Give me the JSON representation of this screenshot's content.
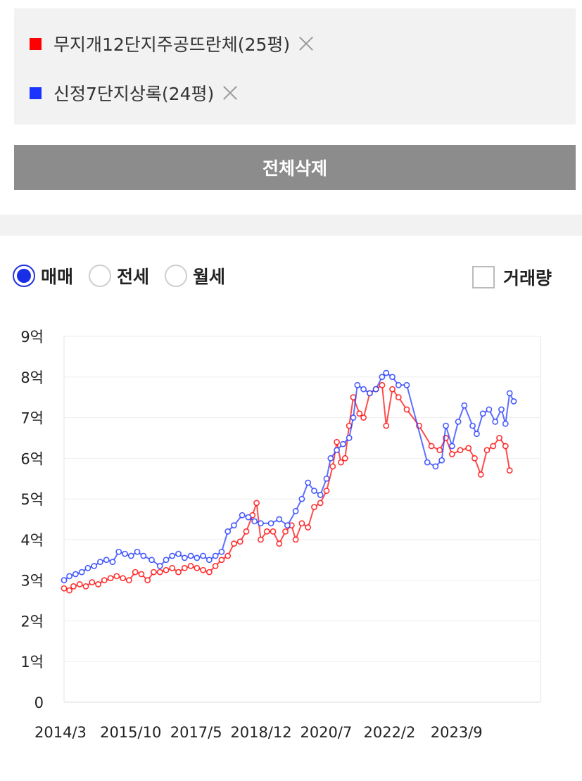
{
  "compare_list": {
    "items": [
      {
        "label": "무지개12단지주공뜨란체(25평)",
        "color": "#ff0000"
      },
      {
        "label": "신정7단지상록(24평)",
        "color": "#1a33ff"
      }
    ],
    "delete_all_label": "전체삭제"
  },
  "trade_type": {
    "options": [
      "매매",
      "전세",
      "월세"
    ],
    "selected": "매매"
  },
  "volume_toggle": {
    "label": "거래량",
    "checked": false
  },
  "chart_data": {
    "type": "line",
    "title": "",
    "xlabel": "",
    "ylabel": "",
    "ylim": [
      0,
      9
    ],
    "xlim": [
      2014.17,
      2025.75
    ],
    "y_ticks": [
      0,
      1,
      2,
      3,
      4,
      5,
      6,
      7,
      8,
      9
    ],
    "y_tick_labels": [
      "0",
      "1억",
      "2억",
      "3억",
      "4억",
      "5억",
      "6억",
      "7억",
      "8억",
      "9억"
    ],
    "x_ticks": [
      2014.17,
      2015.79,
      2017.38,
      2018.96,
      2020.54,
      2022.08,
      2023.71
    ],
    "x_tick_labels": [
      "2014/3",
      "2015/10",
      "2017/5",
      "2018/12",
      "2020/7",
      "2022/2",
      "2023/9"
    ],
    "grid": true,
    "series": [
      {
        "name": "무지개12단지주공뜨란체(25평)",
        "color": "#ff0000",
        "points": [
          [
            2014.17,
            2.8
          ],
          [
            2014.3,
            2.75
          ],
          [
            2014.4,
            2.85
          ],
          [
            2014.55,
            2.9
          ],
          [
            2014.7,
            2.85
          ],
          [
            2014.85,
            2.95
          ],
          [
            2015.0,
            2.9
          ],
          [
            2015.15,
            3.0
          ],
          [
            2015.3,
            3.05
          ],
          [
            2015.45,
            3.1
          ],
          [
            2015.6,
            3.05
          ],
          [
            2015.75,
            3.0
          ],
          [
            2015.9,
            3.2
          ],
          [
            2016.05,
            3.15
          ],
          [
            2016.2,
            3.0
          ],
          [
            2016.35,
            3.2
          ],
          [
            2016.5,
            3.2
          ],
          [
            2016.65,
            3.25
          ],
          [
            2016.8,
            3.3
          ],
          [
            2016.95,
            3.2
          ],
          [
            2017.1,
            3.3
          ],
          [
            2017.25,
            3.35
          ],
          [
            2017.4,
            3.3
          ],
          [
            2017.55,
            3.25
          ],
          [
            2017.7,
            3.2
          ],
          [
            2017.85,
            3.35
          ],
          [
            2018.0,
            3.5
          ],
          [
            2018.15,
            3.6
          ],
          [
            2018.3,
            3.9
          ],
          [
            2018.45,
            3.95
          ],
          [
            2018.6,
            4.2
          ],
          [
            2018.75,
            4.6
          ],
          [
            2018.85,
            4.9
          ],
          [
            2018.95,
            4.0
          ],
          [
            2019.1,
            4.2
          ],
          [
            2019.25,
            4.2
          ],
          [
            2019.4,
            3.9
          ],
          [
            2019.55,
            4.2
          ],
          [
            2019.7,
            4.35
          ],
          [
            2019.8,
            4.0
          ],
          [
            2019.95,
            4.4
          ],
          [
            2020.1,
            4.3
          ],
          [
            2020.25,
            4.8
          ],
          [
            2020.4,
            4.9
          ],
          [
            2020.55,
            5.2
          ],
          [
            2020.7,
            5.8
          ],
          [
            2020.8,
            6.4
          ],
          [
            2020.9,
            5.9
          ],
          [
            2021.0,
            6.0
          ],
          [
            2021.1,
            6.8
          ],
          [
            2021.2,
            7.5
          ],
          [
            2021.35,
            7.1
          ],
          [
            2021.45,
            7.0
          ],
          [
            2021.6,
            7.6
          ],
          [
            2021.75,
            7.7
          ],
          [
            2021.9,
            7.8
          ],
          [
            2022.0,
            6.8
          ],
          [
            2022.15,
            7.7
          ],
          [
            2022.3,
            7.5
          ],
          [
            2022.5,
            7.2
          ],
          [
            2022.8,
            6.8
          ],
          [
            2023.1,
            6.3
          ],
          [
            2023.3,
            6.2
          ],
          [
            2023.45,
            6.5
          ],
          [
            2023.6,
            6.1
          ],
          [
            2023.8,
            6.2
          ],
          [
            2024.0,
            6.25
          ],
          [
            2024.15,
            6.0
          ],
          [
            2024.3,
            5.6
          ],
          [
            2024.45,
            6.2
          ],
          [
            2024.6,
            6.3
          ],
          [
            2024.75,
            6.5
          ],
          [
            2024.9,
            6.3
          ],
          [
            2025.0,
            5.7
          ]
        ]
      },
      {
        "name": "신정7단지상록(24평)",
        "color": "#1a33ff",
        "points": [
          [
            2014.17,
            3.0
          ],
          [
            2014.3,
            3.1
          ],
          [
            2014.45,
            3.15
          ],
          [
            2014.6,
            3.2
          ],
          [
            2014.75,
            3.3
          ],
          [
            2014.9,
            3.35
          ],
          [
            2015.05,
            3.45
          ],
          [
            2015.2,
            3.5
          ],
          [
            2015.35,
            3.45
          ],
          [
            2015.5,
            3.7
          ],
          [
            2015.65,
            3.65
          ],
          [
            2015.8,
            3.6
          ],
          [
            2015.95,
            3.7
          ],
          [
            2016.1,
            3.6
          ],
          [
            2016.3,
            3.5
          ],
          [
            2016.5,
            3.35
          ],
          [
            2016.65,
            3.5
          ],
          [
            2016.8,
            3.6
          ],
          [
            2016.95,
            3.65
          ],
          [
            2017.1,
            3.55
          ],
          [
            2017.25,
            3.6
          ],
          [
            2017.4,
            3.55
          ],
          [
            2017.55,
            3.6
          ],
          [
            2017.7,
            3.5
          ],
          [
            2017.85,
            3.6
          ],
          [
            2018.0,
            3.7
          ],
          [
            2018.15,
            4.2
          ],
          [
            2018.3,
            4.35
          ],
          [
            2018.5,
            4.6
          ],
          [
            2018.65,
            4.55
          ],
          [
            2018.8,
            4.45
          ],
          [
            2018.95,
            4.4
          ],
          [
            2019.2,
            4.4
          ],
          [
            2019.4,
            4.5
          ],
          [
            2019.6,
            4.35
          ],
          [
            2019.8,
            4.7
          ],
          [
            2019.95,
            5.0
          ],
          [
            2020.1,
            5.4
          ],
          [
            2020.25,
            5.2
          ],
          [
            2020.4,
            5.1
          ],
          [
            2020.55,
            5.5
          ],
          [
            2020.65,
            6.0
          ],
          [
            2020.8,
            6.2
          ],
          [
            2020.95,
            6.35
          ],
          [
            2021.1,
            6.5
          ],
          [
            2021.2,
            7.0
          ],
          [
            2021.3,
            7.8
          ],
          [
            2021.45,
            7.7
          ],
          [
            2021.6,
            7.6
          ],
          [
            2021.75,
            7.7
          ],
          [
            2021.9,
            8.0
          ],
          [
            2022.0,
            8.1
          ],
          [
            2022.15,
            8.0
          ],
          [
            2022.3,
            7.8
          ],
          [
            2022.5,
            7.8
          ],
          [
            2023.0,
            5.9
          ],
          [
            2023.2,
            5.8
          ],
          [
            2023.35,
            5.95
          ],
          [
            2023.45,
            6.8
          ],
          [
            2023.6,
            6.3
          ],
          [
            2023.75,
            6.9
          ],
          [
            2023.9,
            7.3
          ],
          [
            2024.1,
            6.8
          ],
          [
            2024.2,
            6.6
          ],
          [
            2024.35,
            7.1
          ],
          [
            2024.5,
            7.2
          ],
          [
            2024.65,
            6.9
          ],
          [
            2024.8,
            7.2
          ],
          [
            2024.9,
            6.85
          ],
          [
            2025.0,
            7.6
          ],
          [
            2025.1,
            7.4
          ]
        ]
      }
    ]
  }
}
